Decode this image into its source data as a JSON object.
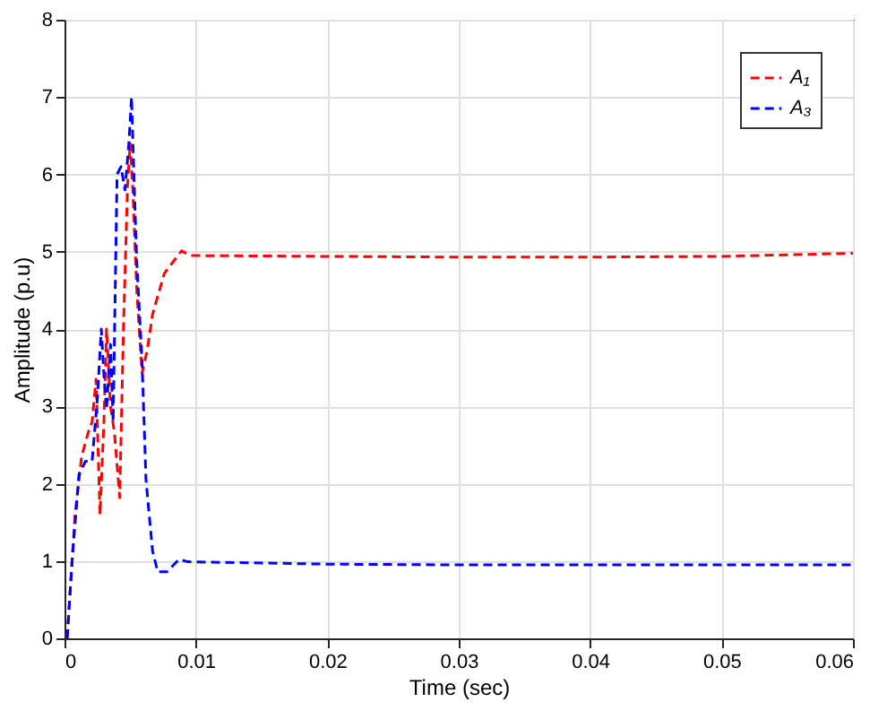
{
  "chart_data": {
    "type": "line",
    "xlabel": "Time (sec)",
    "ylabel": "Amplitude (p.u)",
    "xlim": [
      0,
      0.06
    ],
    "ylim": [
      0,
      8
    ],
    "xticks": [
      0,
      0.01,
      0.02,
      0.03,
      0.04,
      0.05,
      0.06
    ],
    "yticks": [
      0,
      1,
      2,
      3,
      4,
      5,
      6,
      7,
      8
    ],
    "grid": true,
    "legend": "top right",
    "line_style": "dashed",
    "marker": "none",
    "series": [
      {
        "name": "A₁",
        "color": "#ff0000",
        "x": [
          0.0002,
          0.0008,
          0.0013,
          0.0018,
          0.0021,
          0.0024,
          0.0027,
          0.003,
          0.0032,
          0.0035,
          0.0038,
          0.0042,
          0.0045,
          0.0048,
          0.005,
          0.0052,
          0.0055,
          0.0059,
          0.0063,
          0.0067,
          0.0076,
          0.0089,
          0.0096,
          0.02,
          0.03,
          0.04,
          0.05,
          0.055,
          0.06
        ],
        "values": [
          0,
          1.6,
          2.35,
          2.66,
          2.8,
          3.35,
          1.6,
          2.8,
          4.0,
          3.0,
          2.66,
          1.82,
          4.1,
          5.87,
          6.4,
          5.8,
          4.5,
          3.43,
          3.73,
          4.19,
          4.72,
          5.01,
          4.95,
          4.94,
          4.93,
          4.93,
          4.94,
          4.96,
          4.98
        ]
      },
      {
        "name": "A₃",
        "color": "#0000ff",
        "x": [
          0.0002,
          0.0006,
          0.0011,
          0.0016,
          0.0021,
          0.0025,
          0.0028,
          0.003,
          0.0032,
          0.0035,
          0.0037,
          0.004,
          0.0043,
          0.0046,
          0.0049,
          0.0051,
          0.0053,
          0.0055,
          0.0059,
          0.0062,
          0.0067,
          0.0071,
          0.0078,
          0.0087,
          0.0094,
          0.02,
          0.03,
          0.04,
          0.05,
          0.06
        ],
        "values": [
          0,
          1.05,
          2.12,
          2.29,
          2.29,
          3.1,
          4.0,
          3.4,
          2.96,
          3.8,
          2.8,
          6.0,
          6.1,
          5.8,
          6.4,
          7.0,
          5.87,
          4.87,
          3.58,
          2.05,
          1.13,
          0.86,
          0.86,
          1.02,
          0.99,
          0.96,
          0.95,
          0.95,
          0.95,
          0.95
        ]
      }
    ]
  }
}
